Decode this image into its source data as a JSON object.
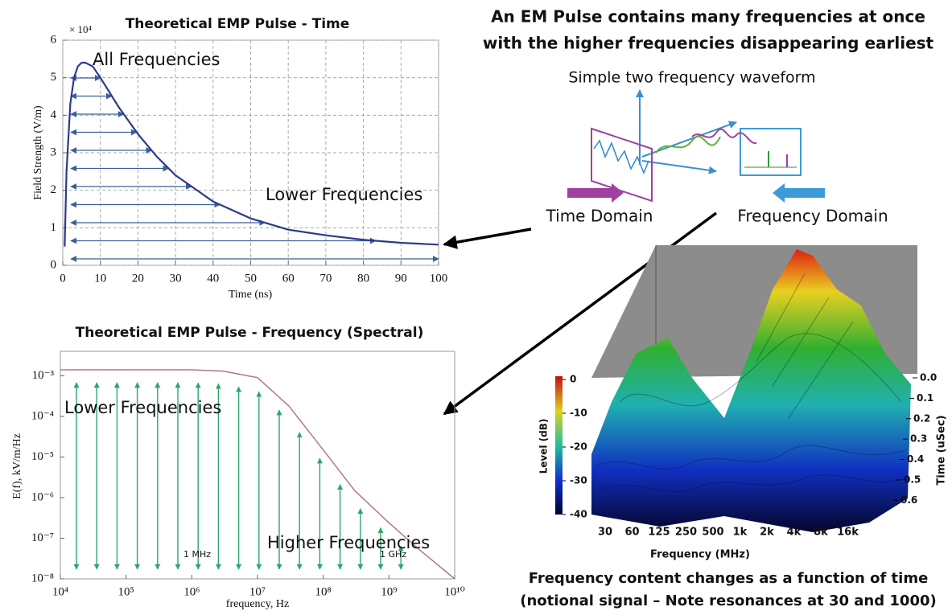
{
  "header": {
    "line1": "An EM Pulse contains many frequencies at once",
    "line2": "with the higher frequencies disappearing earliest"
  },
  "diagram": {
    "title": "Simple two frequency waveform",
    "left_label": "Time Domain",
    "right_label": "Frequency Domain"
  },
  "chart_data": [
    {
      "type": "line",
      "title": "Theoretical EMP Pulse - Time",
      "x_label": "Time (ns)",
      "y_label": "Field Strength (V/m)",
      "y_multiplier": "× 10⁴",
      "x": [
        0.5,
        1,
        2,
        3,
        4,
        5,
        6,
        8,
        10,
        15,
        20,
        25,
        30,
        40,
        50,
        60,
        70,
        80,
        90,
        100
      ],
      "series": [
        {
          "color": "#2e3a8c",
          "values": [
            0.5,
            2.5,
            4.3,
            5.0,
            5.3,
            5.4,
            5.4,
            5.3,
            5.0,
            4.2,
            3.5,
            2.9,
            2.4,
            1.7,
            1.25,
            0.95,
            0.8,
            0.68,
            0.6,
            0.55
          ]
        }
      ],
      "xlim": [
        0,
        100
      ],
      "xticks": [
        0,
        10,
        20,
        30,
        40,
        50,
        60,
        70,
        80,
        90,
        100
      ],
      "ylim": [
        0,
        6
      ],
      "yticks": [
        0,
        1,
        2,
        3,
        4,
        5,
        6
      ],
      "grid": true,
      "annotations": [
        "All Frequencies",
        "Lower Frequencies"
      ]
    },
    {
      "type": "line",
      "title": "Theoretical EMP Pulse - Frequency (Spectral)",
      "x_label": "frequency, Hz",
      "y_label": "E(f), kV/m/Hz",
      "log_x": true,
      "log_y": true,
      "x": [
        10000,
        100000,
        1000000,
        3000000,
        10000000,
        30000000,
        100000000,
        300000000,
        1000000000,
        3000000000,
        10000000000
      ],
      "series": [
        {
          "color": "#b07a80",
          "values": [
            0.0014,
            0.0014,
            0.0014,
            0.0013,
            0.0009,
            0.00018,
            1.5e-05,
            1.5e-06,
            2.4e-07,
            5e-08,
            1e-08
          ]
        }
      ],
      "xlim": [
        10000,
        10000000000
      ],
      "xticks": [
        {
          "value": 10000,
          "label": "10⁴"
        },
        {
          "value": 100000,
          "label": "10⁵"
        },
        {
          "value": 1000000,
          "label": "10⁶"
        },
        {
          "value": 10000000,
          "label": "10⁷"
        },
        {
          "value": 100000000,
          "label": "10⁸"
        },
        {
          "value": 1000000000,
          "label": "10⁹"
        },
        {
          "value": 10000000000,
          "label": "10¹⁰"
        }
      ],
      "ylim": [
        1e-08,
        0.004
      ],
      "yticks": [
        {
          "value": 1e-08,
          "label": "10⁻⁸"
        },
        {
          "value": 1e-07,
          "label": "10⁻⁷"
        },
        {
          "value": 1e-06,
          "label": "10⁻⁶"
        },
        {
          "value": 1e-05,
          "label": "10⁻⁵"
        },
        {
          "value": 0.0001,
          "label": "10⁻⁴"
        },
        {
          "value": 0.001,
          "label": "10⁻³"
        }
      ],
      "grid": false,
      "annotations": [
        "Lower Frequencies",
        "Higher Frequencies",
        "1  MHz",
        "1  GHz"
      ]
    },
    {
      "type": "surface",
      "x_label": "Frequency (MHz)",
      "categories": [
        "30",
        "60",
        "125",
        "250",
        "500",
        "1k",
        "2k",
        "4k",
        "8k",
        "16k"
      ],
      "z_label": "Time (uSec)",
      "zlim": [
        0,
        0.65
      ],
      "zticks": [
        {
          "value": 0,
          "label": "0.0"
        },
        0.1,
        0.2,
        0.3,
        0.4,
        0.5,
        0.6
      ],
      "colorbar": {
        "label": "Level (dB)",
        "lim": [
          -40,
          0
        ],
        "ticks": [
          0,
          -10,
          -20,
          -30,
          -40
        ]
      }
    }
  ],
  "caption": {
    "line1": "Frequency content changes as a function of time",
    "line2": "(notional signal – Note resonances at 30 and 1000)"
  }
}
